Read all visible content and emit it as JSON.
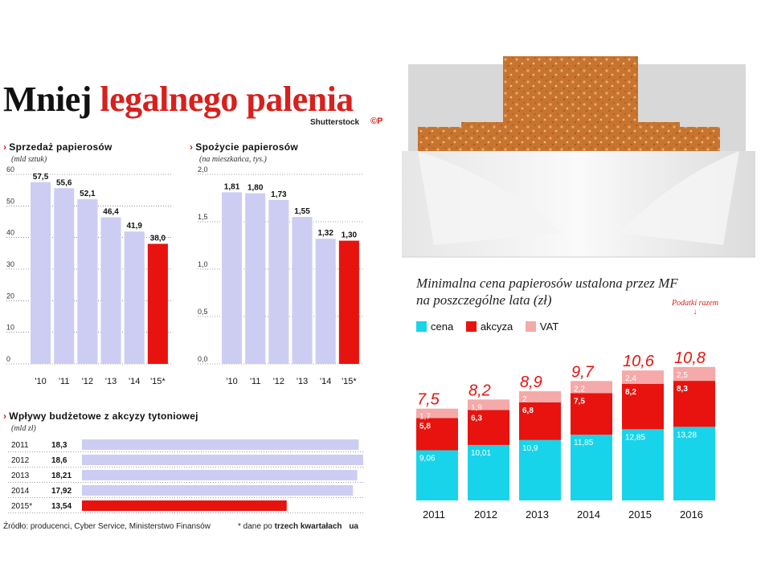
{
  "title": {
    "part1": "Mniej",
    "part2": "legalnego palenia"
  },
  "credit": {
    "text": "Shutterstock",
    "logo": "©P"
  },
  "colors": {
    "lavender": "#cdcdf3",
    "red": "#e8130e",
    "cyan": "#18d4ea",
    "pink": "#f5a9a9",
    "title_red": "#d8201c"
  },
  "sales_panel": {
    "title": "Sprzedaż papierosów",
    "subtitle": "(mld sztuk)"
  },
  "consumption_panel": {
    "title": "Spożycie papierosów",
    "subtitle": "(na mieszkańca, tys.)"
  },
  "revenue_panel": {
    "title": "Wpływy budżetowe z akcyzy tytoniowej",
    "subtitle": "(mld zł)"
  },
  "price_panel": {
    "title": "Minimalna cena papierosów ustalona przez MF na poszczególne lata (zł)",
    "legend": [
      "cena",
      "akcyza",
      "VAT"
    ],
    "tax_note": "Podatki razem",
    "tax_arrow": "↓"
  },
  "source": "Źródło: producenci, Cyber Service, Ministerstwo Finansów",
  "footnote": {
    "prefix": "* dane po",
    "bold": "trzech kwartałach",
    "logo": "ua"
  },
  "chart_data": [
    {
      "type": "bar",
      "title": "Sprzedaż papierosów",
      "ylabel": "(mld sztuk)",
      "categories": [
        "'10",
        "'11",
        "'12",
        "'13",
        "'14",
        "'15*"
      ],
      "values": [
        57.5,
        55.6,
        52.1,
        46.4,
        41.9,
        38.0
      ],
      "labels": [
        "57,5",
        "55,6",
        "52,1",
        "46,4",
        "41,9",
        "38,0"
      ],
      "yticks": [
        0,
        10,
        20,
        30,
        40,
        50,
        60
      ],
      "ylim": [
        0,
        60
      ],
      "highlight_index": 5
    },
    {
      "type": "bar",
      "title": "Spożycie papierosów",
      "ylabel": "(na mieszkańca, tys.)",
      "categories": [
        "'10",
        "'11",
        "'12",
        "'13",
        "'14",
        "'15*"
      ],
      "values": [
        1.81,
        1.8,
        1.73,
        1.55,
        1.32,
        1.3
      ],
      "labels": [
        "1,81",
        "1,80",
        "1,73",
        "1,55",
        "1,32",
        "1,30"
      ],
      "yticks": [
        0.0,
        0.5,
        1.0,
        1.5,
        2.0
      ],
      "ytick_labels": [
        "0,0",
        "0,5",
        "1,0",
        "1,5",
        "2,0"
      ],
      "ylim": [
        0,
        2.0
      ],
      "highlight_index": 5
    },
    {
      "type": "bar",
      "orientation": "horizontal",
      "title": "Wpływy budżetowe z akcyzy tytoniowej",
      "ylabel": "(mld zł)",
      "categories": [
        "2011",
        "2012",
        "2013",
        "2014",
        "2015*"
      ],
      "values": [
        18.3,
        18.6,
        18.21,
        17.92,
        13.54
      ],
      "labels": [
        "18,3",
        "18,6",
        "18,21",
        "17,92",
        "13,54"
      ],
      "xlim": [
        0,
        18.6
      ],
      "highlight_index": 4
    },
    {
      "type": "bar",
      "stacked": true,
      "title": "Minimalna cena papierosów ustalona przez MF na poszczególne lata (zł)",
      "categories": [
        "2011",
        "2012",
        "2013",
        "2014",
        "2015",
        "2016"
      ],
      "series": [
        {
          "name": "cena",
          "values": [
            9.06,
            10.01,
            10.9,
            11.85,
            12.85,
            13.28
          ],
          "labels": [
            "9,06",
            "10,01",
            "10,9",
            "11,85",
            "12,85",
            "13,28"
          ]
        },
        {
          "name": "akcyza",
          "values": [
            5.8,
            6.3,
            6.8,
            7.5,
            8.2,
            8.3
          ],
          "labels": [
            "5,8",
            "6,3",
            "6,8",
            "7,5",
            "8,2",
            "8,3"
          ]
        },
        {
          "name": "VAT",
          "values": [
            1.7,
            1.9,
            2.0,
            2.2,
            2.4,
            2.5
          ],
          "labels": [
            "1,7",
            "1,9",
            "2",
            "2,2",
            "2,4",
            "2,5"
          ]
        }
      ],
      "tax_totals": [
        7.5,
        8.2,
        8.9,
        9.7,
        10.6,
        10.8
      ],
      "tax_total_labels": [
        "7,5",
        "8,2",
        "8,9",
        "9,7",
        "10,6",
        "10,8"
      ]
    }
  ]
}
